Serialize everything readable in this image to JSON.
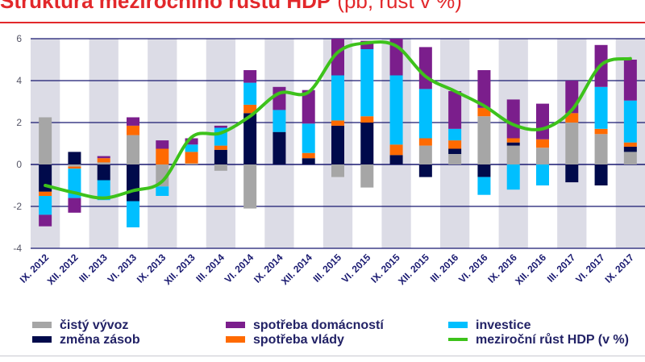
{
  "header": {
    "title": "Struktura meziročního růstu HDP",
    "subtitle": "(pb, růst v %)"
  },
  "colors": {
    "net_exports": "#a6a6a6",
    "inventories": "#000a4b",
    "household": "#7b1e8c",
    "government": "#ff6a00",
    "investment": "#00bfff",
    "gdp_line": "#3dc21b",
    "shade": "#dcdce6",
    "grid": "#191970"
  },
  "chart_data": {
    "type": "bar",
    "stacked": true,
    "categories": [
      "IX. 2012",
      "XII. 2012",
      "III. 2013",
      "VI. 2013",
      "IX. 2013",
      "XII. 2013",
      "III. 2014",
      "VI. 2014",
      "IX. 2014",
      "XII. 2014",
      "III. 2015",
      "VI. 2015",
      "IX. 2015",
      "XII. 2015",
      "III. 2016",
      "VI. 2016",
      "IX. 2016",
      "XII. 2016",
      "III. 2017",
      "VI. 2017",
      "IX. 2017"
    ],
    "ylim": [
      -4,
      6
    ],
    "yticks": [
      -4,
      -2,
      0,
      2,
      4,
      6
    ],
    "grid": true,
    "legend_position": "bottom",
    "series": [
      {
        "name": "čistý vývoz",
        "color_key": "net_exports",
        "values": [
          2.25,
          -0.1,
          0.1,
          1.4,
          -1.05,
          0.05,
          -0.3,
          -2.1,
          0,
          0,
          -0.6,
          -1.1,
          0,
          0.9,
          0.5,
          2.3,
          0.9,
          0.8,
          2.0,
          1.45,
          0.6
        ]
      },
      {
        "name": "změna zásob",
        "color_key": "inventories",
        "values": [
          -1.3,
          0.6,
          -0.75,
          -1.75,
          0,
          0,
          0.7,
          2.45,
          1.55,
          0.3,
          1.85,
          2.0,
          0.45,
          -0.6,
          0.25,
          -0.6,
          0.15,
          0,
          -0.85,
          -1.0,
          0.25
        ]
      },
      {
        "name": "spotřeba vlády",
        "color_key": "government",
        "values": [
          -0.2,
          -0.1,
          0.2,
          0.45,
          0.75,
          0.55,
          0.2,
          0.4,
          0,
          0.25,
          0.25,
          0.3,
          0.5,
          0.35,
          0.4,
          0.4,
          0.2,
          0.4,
          0.45,
          0.25,
          0.2
        ]
      },
      {
        "name": "investice",
        "color_key": "investment",
        "values": [
          -0.9,
          -1.4,
          -0.95,
          -1.25,
          -0.45,
          0.35,
          0.85,
          1.05,
          1.05,
          1.4,
          2.15,
          3.2,
          3.3,
          2.35,
          0.55,
          -0.85,
          -1.2,
          -1.0,
          0,
          2.0,
          2.0
        ]
      },
      {
        "name": "spotřeba domácností",
        "color_key": "household",
        "values": [
          -0.55,
          -0.7,
          0.1,
          0.4,
          0.4,
          0.3,
          0.1,
          0.6,
          1.1,
          1.6,
          1.75,
          0.4,
          1.75,
          2.0,
          1.8,
          1.8,
          1.85,
          1.7,
          1.55,
          2.0,
          1.95
        ]
      }
    ],
    "line": {
      "name": "meziroční růst HDP (v %)",
      "color_key": "gdp_line",
      "values": [
        -1.0,
        -1.35,
        -1.6,
        -1.25,
        -0.8,
        1.3,
        1.5,
        2.3,
        3.4,
        3.45,
        5.35,
        5.8,
        5.65,
        4.2,
        3.5,
        2.8,
        1.9,
        1.7,
        2.6,
        4.75,
        5.05
      ]
    }
  },
  "legend": [
    {
      "label": "čistý vývoz",
      "color_key": "net_exports",
      "kind": "box"
    },
    {
      "label": "spotřeba domácností",
      "color_key": "household",
      "kind": "box"
    },
    {
      "label": "investice",
      "color_key": "investment",
      "kind": "box"
    },
    {
      "label": "změna zásob",
      "color_key": "inventories",
      "kind": "box"
    },
    {
      "label": "spotřeba vlády",
      "color_key": "government",
      "kind": "box"
    },
    {
      "label": "meziroční růst HDP (v %)",
      "color_key": "gdp_line",
      "kind": "line"
    }
  ]
}
